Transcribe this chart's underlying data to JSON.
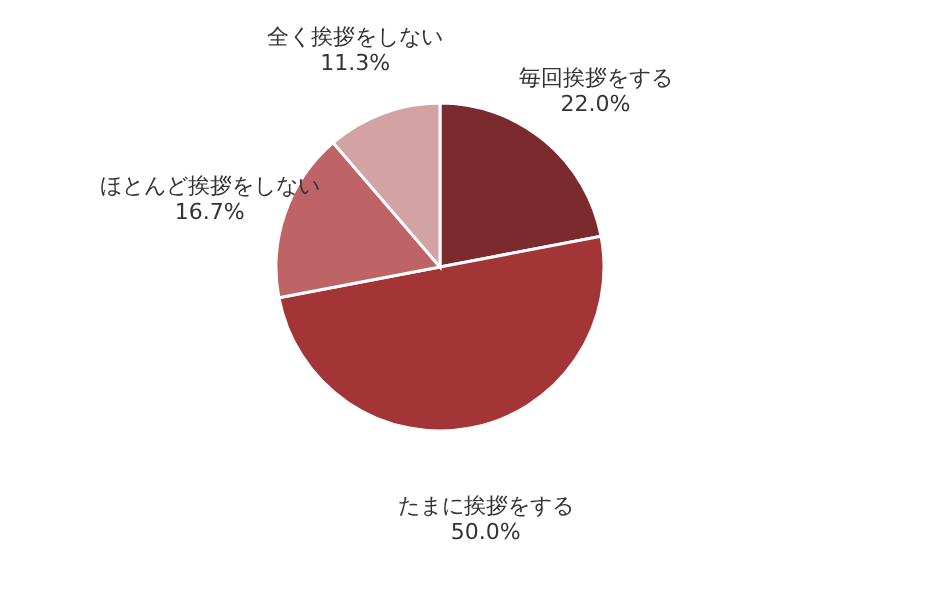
{
  "chart_data": {
    "type": "pie",
    "categories": [
      "毎回挨拶をする",
      "たまに挨拶をする",
      "ほとんど挨拶をしない",
      "全く挨拶をしない"
    ],
    "values": [
      22.0,
      50.0,
      16.7,
      11.3
    ],
    "colors": [
      "#7b2a2e",
      "#a33536",
      "#bf6466",
      "#d3a2a2"
    ],
    "value_labels": [
      "22.0%",
      "50.0%",
      "16.7%",
      "11.3%"
    ],
    "legend": false
  }
}
